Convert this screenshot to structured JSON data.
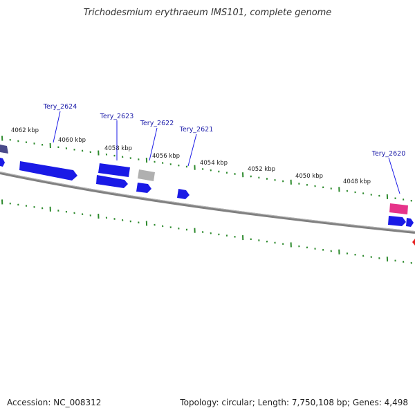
{
  "title": "Trichodesmium erythraeum IMS101, complete genome",
  "footer": {
    "accession": "Accession: NC_008312",
    "summary": "Topology: circular; Length: 7,750,108 bp; Genes: 4,498"
  },
  "ruler": {
    "labels": [
      "4062 kbp",
      "4060 kbp",
      "4058 kbp",
      "4056 kbp",
      "4054 kbp",
      "4052 kbp",
      "4050 kbp",
      "4048 kbp"
    ]
  },
  "genes": [
    {
      "id": "Tery_2624",
      "label": "Tery_2624"
    },
    {
      "id": "Tery_2623",
      "label": "Tery_2623"
    },
    {
      "id": "Tery_2622",
      "label": "Tery_2622"
    },
    {
      "id": "Tery_2621",
      "label": "Tery_2621"
    },
    {
      "id": "Tery_2620",
      "label": "Tery_2620"
    }
  ],
  "colors": {
    "backbone": "#808080",
    "tick": "#2d8a2d",
    "gene": "#1a1ae6",
    "gene_dark": "#4a4a8a",
    "gene_gray": "#b0b0b0",
    "gene_pink": "#e6338a",
    "gene_red": "#e62020",
    "label_line": "#1a1ae6"
  }
}
